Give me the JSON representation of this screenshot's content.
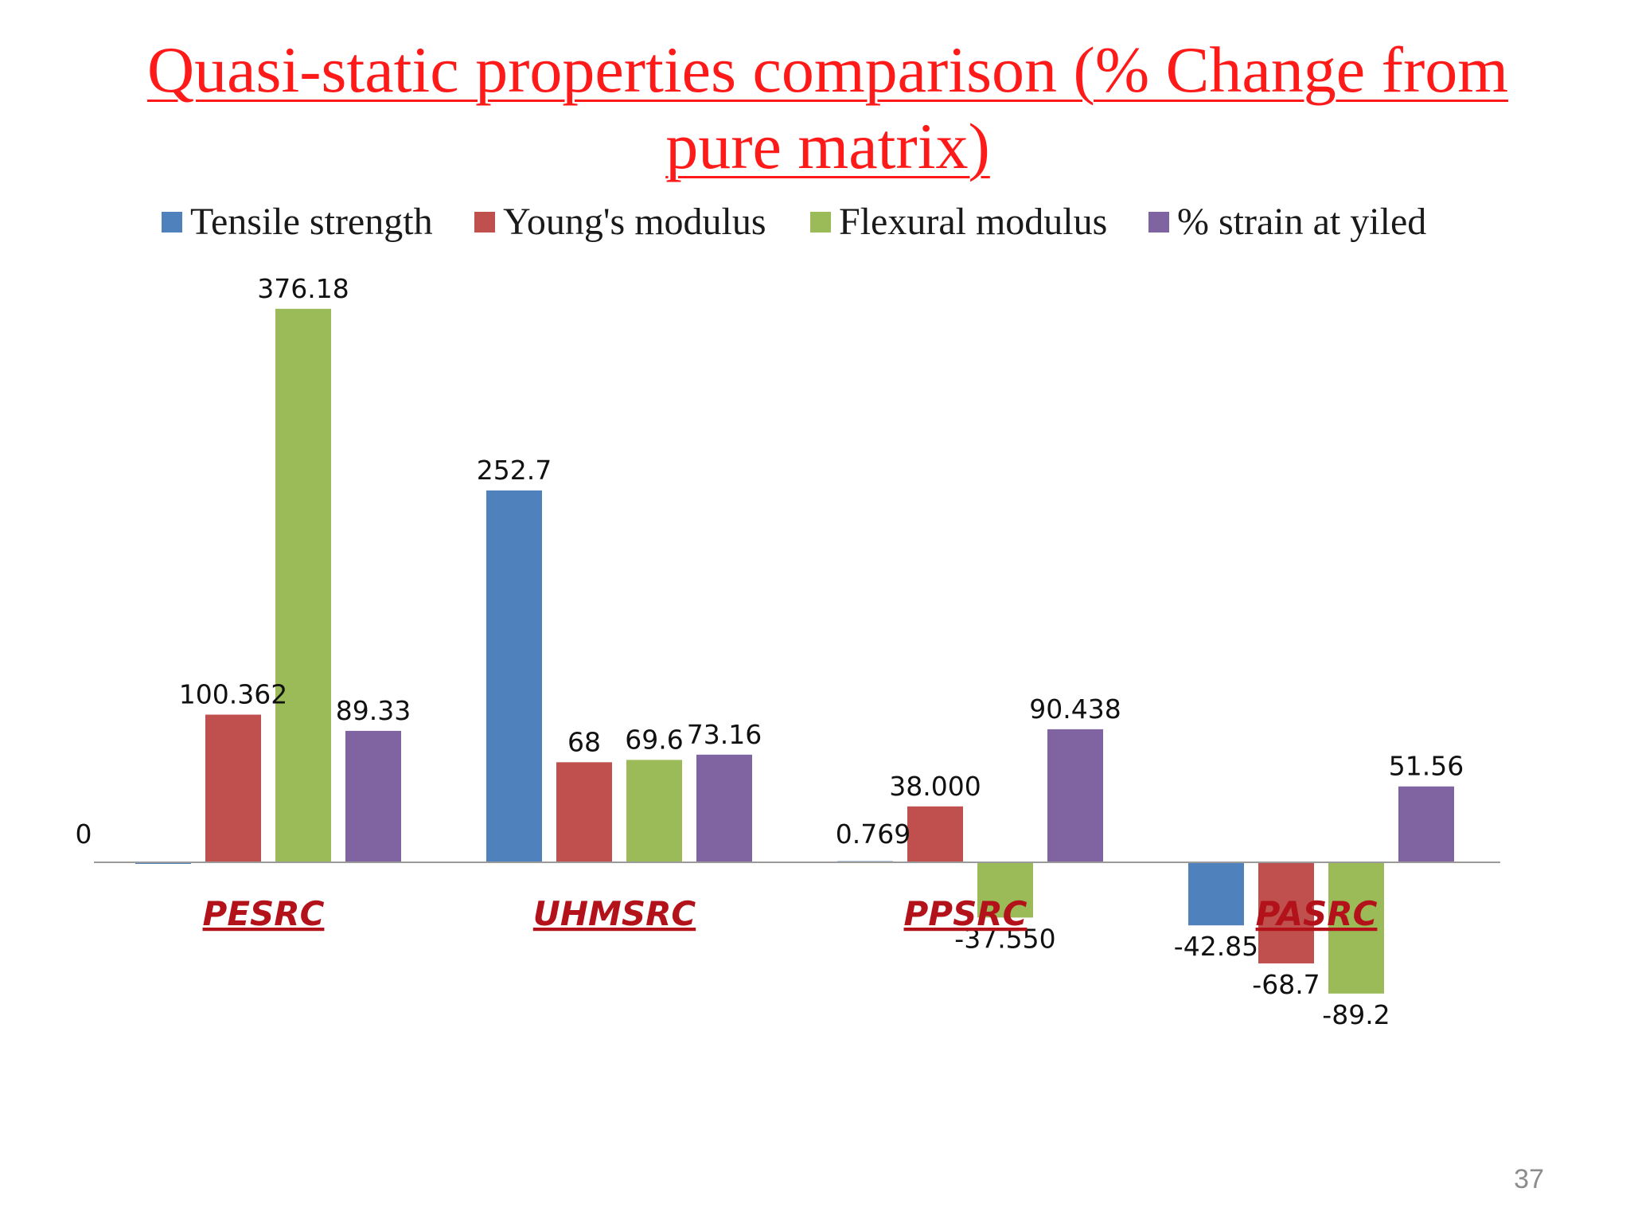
{
  "slide": {
    "title": "Quasi-static properties comparison (% Change from pure matrix)",
    "page_number": "37"
  },
  "colors": {
    "title": "#ff1a1a",
    "category_label": "#b3121a",
    "axis": "#9a9a9a"
  },
  "chart_data": {
    "type": "bar",
    "title": "",
    "xlabel": "",
    "ylabel": "",
    "legend_position": "top",
    "grid": false,
    "axis_line_at_zero": true,
    "ylim": [
      -110,
      400
    ],
    "categories": [
      "PESRC",
      "UHMSRC",
      "PPSRC",
      "PASRC"
    ],
    "series": [
      {
        "name": "Tensile strength",
        "color": "#4f81bd",
        "values": [
          0,
          252.7,
          0.769,
          -42.85
        ],
        "labels": [
          "0",
          "252.7",
          "0.769",
          "-42.85"
        ]
      },
      {
        "name": "Young's modulus",
        "color": "#c0504d",
        "values": [
          100.362,
          68,
          38.0,
          -68.7
        ],
        "labels": [
          "100.362",
          "68",
          "38.000",
          "-68.7"
        ]
      },
      {
        "name": "Flexural modulus",
        "color": "#9bbb59",
        "values": [
          376.18,
          69.6,
          -37.55,
          -89.2
        ],
        "labels": [
          "376.18",
          "69.6",
          "-37.550",
          "-89.2"
        ]
      },
      {
        "name": "% strain at yiled",
        "color": "#8064a2",
        "values": [
          89.33,
          73.16,
          90.438,
          51.56
        ],
        "labels": [
          "89.33",
          "73.16",
          "90.438",
          "51.56"
        ]
      }
    ]
  }
}
